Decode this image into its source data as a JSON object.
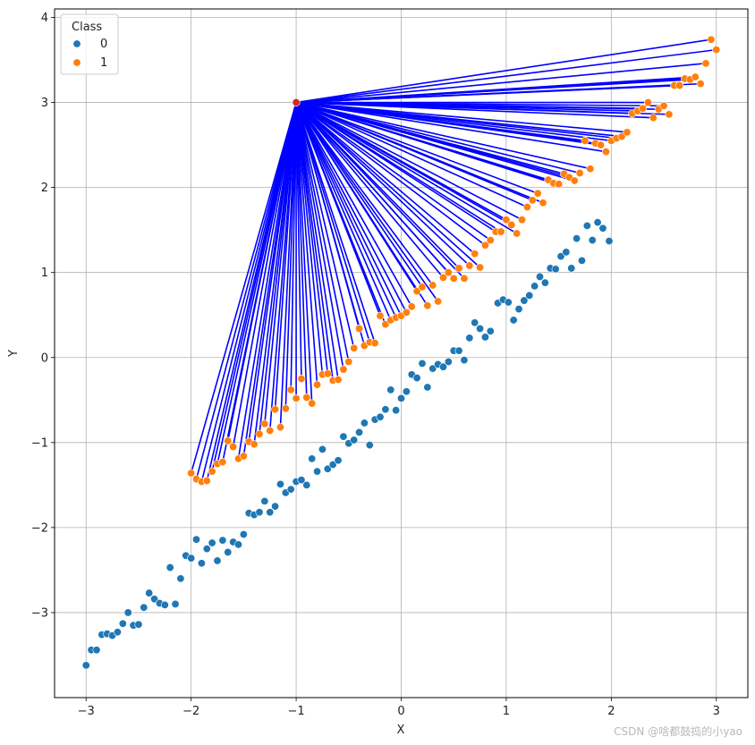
{
  "chart_data": {
    "type": "scatter",
    "xlabel": "X",
    "ylabel": "Y",
    "xlim": [
      -3.3,
      3.3
    ],
    "ylim": [
      -4.0,
      4.1
    ],
    "xticks": [
      -3,
      -2,
      -1,
      0,
      1,
      2,
      3
    ],
    "yticks": [
      -3,
      -2,
      -1,
      0,
      1,
      2,
      3,
      4
    ],
    "xtick_labels": [
      "−3",
      "−2",
      "−1",
      "0",
      "1",
      "2",
      "3"
    ],
    "ytick_labels": [
      "−3",
      "−2",
      "−1",
      "0",
      "1",
      "2",
      "3",
      "4"
    ],
    "grid": true,
    "legend": {
      "title": "Class",
      "placement": "top-left",
      "entries": [
        {
          "label": "0",
          "color": "#1f77b4"
        },
        {
          "label": "1",
          "color": "#ff7f0e"
        }
      ]
    },
    "anchor_point": {
      "x": -1.0,
      "y": 3.0,
      "color": "#d62728"
    },
    "connector_color": "#0000ff",
    "series": [
      {
        "name": "0",
        "color": "#1f77b4",
        "points": [
          [
            -3.0,
            -3.62
          ],
          [
            -2.95,
            -3.44
          ],
          [
            -2.9,
            -3.44
          ],
          [
            -2.85,
            -3.26
          ],
          [
            -2.8,
            -3.25
          ],
          [
            -2.75,
            -3.27
          ],
          [
            -2.7,
            -3.23
          ],
          [
            -2.65,
            -3.13
          ],
          [
            -2.6,
            -3.0
          ],
          [
            -2.55,
            -3.15
          ],
          [
            -2.5,
            -3.14
          ],
          [
            -2.45,
            -2.94
          ],
          [
            -2.4,
            -2.77
          ],
          [
            -2.35,
            -2.84
          ],
          [
            -2.3,
            -2.89
          ],
          [
            -2.25,
            -2.91
          ],
          [
            -2.2,
            -2.47
          ],
          [
            -2.15,
            -2.9
          ],
          [
            -2.1,
            -2.6
          ],
          [
            -2.05,
            -2.33
          ],
          [
            -2.0,
            -2.36
          ],
          [
            -1.95,
            -2.14
          ],
          [
            -1.9,
            -2.42
          ],
          [
            -1.85,
            -2.25
          ],
          [
            -1.8,
            -2.18
          ],
          [
            -1.75,
            -2.39
          ],
          [
            -1.7,
            -2.15
          ],
          [
            -1.65,
            -2.29
          ],
          [
            -1.6,
            -2.17
          ],
          [
            -1.55,
            -2.2
          ],
          [
            -1.5,
            -2.08
          ],
          [
            -1.45,
            -1.83
          ],
          [
            -1.4,
            -1.85
          ],
          [
            -1.35,
            -1.82
          ],
          [
            -1.3,
            -1.69
          ],
          [
            -1.25,
            -1.82
          ],
          [
            -1.2,
            -1.75
          ],
          [
            -1.15,
            -1.49
          ],
          [
            -1.1,
            -1.59
          ],
          [
            -1.05,
            -1.55
          ],
          [
            -1.0,
            -1.46
          ],
          [
            -0.95,
            -1.44
          ],
          [
            -0.9,
            -1.5
          ],
          [
            -0.85,
            -1.19
          ],
          [
            -0.8,
            -1.34
          ],
          [
            -0.75,
            -1.08
          ],
          [
            -0.7,
            -1.31
          ],
          [
            -0.65,
            -1.26
          ],
          [
            -0.6,
            -1.21
          ],
          [
            -0.55,
            -0.93
          ],
          [
            -0.5,
            -1.01
          ],
          [
            -0.45,
            -0.97
          ],
          [
            -0.4,
            -0.88
          ],
          [
            -0.35,
            -0.77
          ],
          [
            -0.3,
            -1.03
          ],
          [
            -0.25,
            -0.73
          ],
          [
            -0.2,
            -0.7
          ],
          [
            -0.15,
            -0.61
          ],
          [
            -0.1,
            -0.38
          ],
          [
            -0.05,
            -0.62
          ],
          [
            0.0,
            -0.48
          ],
          [
            0.05,
            -0.4
          ],
          [
            0.1,
            -0.2
          ],
          [
            0.15,
            -0.24
          ],
          [
            0.2,
            -0.07
          ],
          [
            0.25,
            -0.35
          ],
          [
            0.3,
            -0.13
          ],
          [
            0.35,
            -0.08
          ],
          [
            0.4,
            -0.11
          ],
          [
            0.45,
            -0.05
          ],
          [
            0.5,
            0.08
          ],
          [
            0.55,
            0.08
          ],
          [
            0.6,
            -0.03
          ],
          [
            0.65,
            0.23
          ],
          [
            0.7,
            0.41
          ],
          [
            0.75,
            0.34
          ],
          [
            0.8,
            0.24
          ],
          [
            0.85,
            0.31
          ],
          [
            0.92,
            0.64
          ],
          [
            0.97,
            0.68
          ],
          [
            1.02,
            0.65
          ],
          [
            1.07,
            0.44
          ],
          [
            1.12,
            0.57
          ],
          [
            1.17,
            0.67
          ],
          [
            1.22,
            0.73
          ],
          [
            1.27,
            0.84
          ],
          [
            1.32,
            0.95
          ],
          [
            1.37,
            0.88
          ],
          [
            1.42,
            1.05
          ],
          [
            1.47,
            1.04
          ],
          [
            1.52,
            1.19
          ],
          [
            1.57,
            1.24
          ],
          [
            1.62,
            1.05
          ],
          [
            1.67,
            1.4
          ],
          [
            1.72,
            1.14
          ],
          [
            1.77,
            1.55
          ],
          [
            1.82,
            1.38
          ],
          [
            1.87,
            1.59
          ],
          [
            1.92,
            1.52
          ],
          [
            1.98,
            1.37
          ]
        ]
      },
      {
        "name": "1",
        "color": "#ff7f0e",
        "points": [
          [
            -2.0,
            -1.36
          ],
          [
            -1.95,
            -1.43
          ],
          [
            -1.9,
            -1.46
          ],
          [
            -1.85,
            -1.45
          ],
          [
            -1.8,
            -1.34
          ],
          [
            -1.75,
            -1.25
          ],
          [
            -1.7,
            -1.23
          ],
          [
            -1.65,
            -0.98
          ],
          [
            -1.6,
            -1.05
          ],
          [
            -1.55,
            -1.19
          ],
          [
            -1.5,
            -1.16
          ],
          [
            -1.45,
            -0.99
          ],
          [
            -1.4,
            -1.02
          ],
          [
            -1.35,
            -0.9
          ],
          [
            -1.3,
            -0.78
          ],
          [
            -1.25,
            -0.86
          ],
          [
            -1.2,
            -0.61
          ],
          [
            -1.15,
            -0.82
          ],
          [
            -1.1,
            -0.6
          ],
          [
            -1.05,
            -0.38
          ],
          [
            -1.0,
            -0.48
          ],
          [
            -0.95,
            -0.25
          ],
          [
            -0.9,
            -0.47
          ],
          [
            -0.85,
            -0.54
          ],
          [
            -0.8,
            -0.32
          ],
          [
            -0.75,
            -0.2
          ],
          [
            -0.7,
            -0.19
          ],
          [
            -0.65,
            -0.27
          ],
          [
            -0.6,
            -0.26
          ],
          [
            -0.55,
            -0.14
          ],
          [
            -0.5,
            -0.05
          ],
          [
            -0.45,
            0.11
          ],
          [
            -0.4,
            0.34
          ],
          [
            -0.35,
            0.14
          ],
          [
            -0.3,
            0.18
          ],
          [
            -0.25,
            0.17
          ],
          [
            -0.2,
            0.49
          ],
          [
            -0.15,
            0.39
          ],
          [
            -0.1,
            0.44
          ],
          [
            -0.05,
            0.47
          ],
          [
            0.0,
            0.49
          ],
          [
            0.05,
            0.53
          ],
          [
            0.1,
            0.6
          ],
          [
            0.15,
            0.78
          ],
          [
            0.2,
            0.83
          ],
          [
            0.25,
            0.61
          ],
          [
            0.3,
            0.85
          ],
          [
            0.35,
            0.66
          ],
          [
            0.4,
            0.94
          ],
          [
            0.45,
            1.0
          ],
          [
            0.5,
            0.93
          ],
          [
            0.55,
            1.05
          ],
          [
            0.6,
            0.93
          ],
          [
            0.65,
            1.08
          ],
          [
            0.7,
            1.22
          ],
          [
            0.75,
            1.06
          ],
          [
            0.8,
            1.32
          ],
          [
            0.85,
            1.38
          ],
          [
            0.9,
            1.48
          ],
          [
            0.95,
            1.48
          ],
          [
            1.0,
            1.62
          ],
          [
            1.05,
            1.56
          ],
          [
            1.1,
            1.46
          ],
          [
            1.15,
            1.62
          ],
          [
            1.2,
            1.77
          ],
          [
            1.25,
            1.85
          ],
          [
            1.3,
            1.93
          ],
          [
            1.35,
            1.82
          ],
          [
            1.4,
            2.09
          ],
          [
            1.45,
            2.05
          ],
          [
            1.5,
            2.04
          ],
          [
            1.55,
            2.16
          ],
          [
            1.6,
            2.12
          ],
          [
            1.65,
            2.08
          ],
          [
            1.7,
            2.17
          ],
          [
            1.75,
            2.55
          ],
          [
            1.8,
            2.22
          ],
          [
            1.85,
            2.52
          ],
          [
            1.9,
            2.5
          ],
          [
            1.95,
            2.42
          ],
          [
            2.0,
            2.55
          ],
          [
            2.05,
            2.58
          ],
          [
            2.1,
            2.6
          ],
          [
            2.15,
            2.65
          ],
          [
            2.2,
            2.87
          ],
          [
            2.25,
            2.9
          ],
          [
            2.3,
            2.93
          ],
          [
            2.35,
            3.0
          ],
          [
            2.4,
            2.82
          ],
          [
            2.45,
            2.92
          ],
          [
            2.5,
            2.96
          ],
          [
            2.55,
            2.86
          ],
          [
            2.6,
            3.2
          ],
          [
            2.65,
            3.2
          ],
          [
            2.7,
            3.28
          ],
          [
            2.75,
            3.27
          ],
          [
            2.8,
            3.3
          ],
          [
            2.85,
            3.22
          ],
          [
            2.9,
            3.46
          ],
          [
            2.95,
            3.74
          ],
          [
            3.0,
            3.62
          ]
        ]
      }
    ]
  },
  "watermark": "CSDN @啥都鼓捣的小yao"
}
